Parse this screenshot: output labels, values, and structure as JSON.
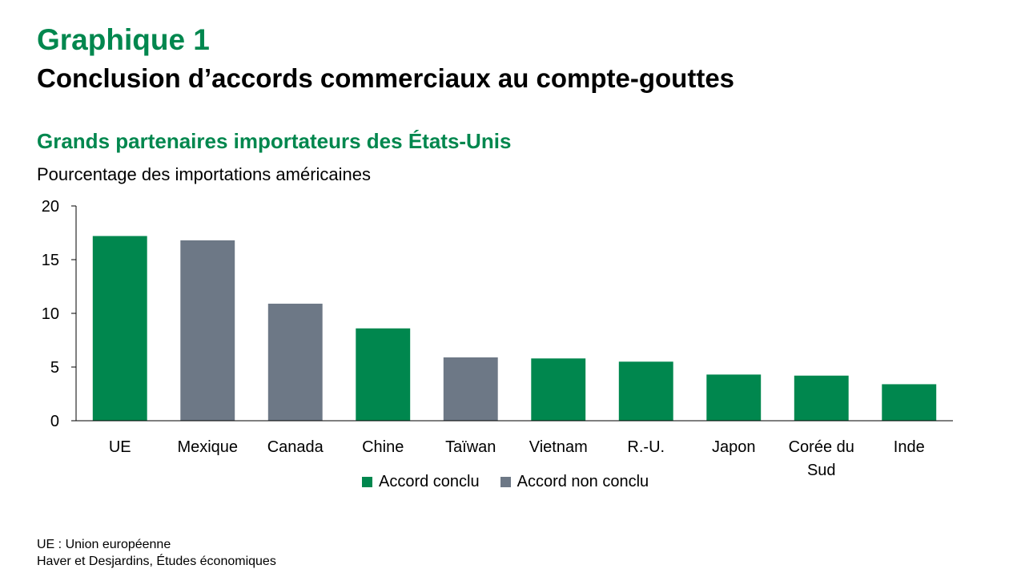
{
  "header": {
    "graph_number": "Graphique 1",
    "title": "Conclusion d’accords commerciaux au compte-gouttes"
  },
  "chart_data": {
    "type": "bar",
    "title": "Grands partenaires importateurs des États-Unis",
    "ylabel": "Pourcentage des importations américaines",
    "xlabel": "",
    "categories": [
      "UE",
      "Mexique",
      "Canada",
      "Chine",
      "Taïwan",
      "Vietnam",
      "R.-U.",
      "Japon",
      "Corée du Sud",
      "Inde"
    ],
    "category_lines": [
      [
        "UE"
      ],
      [
        "Mexique"
      ],
      [
        "Canada"
      ],
      [
        "Chine"
      ],
      [
        "Taïwan"
      ],
      [
        "Vietnam"
      ],
      [
        "R.-U."
      ],
      [
        "Japon"
      ],
      [
        "Corée du",
        "Sud"
      ],
      [
        "Inde"
      ]
    ],
    "values": [
      17.2,
      16.8,
      10.9,
      8.6,
      5.9,
      5.8,
      5.5,
      4.3,
      4.2,
      3.4
    ],
    "status": [
      "conclu",
      "non",
      "non",
      "conclu",
      "non",
      "conclu",
      "conclu",
      "conclu",
      "conclu",
      "conclu"
    ],
    "ylim": [
      0,
      20
    ],
    "yticks": [
      0,
      5,
      10,
      15,
      20
    ],
    "grid": false,
    "legend_position": "bottom",
    "legend": [
      {
        "key": "conclu",
        "label": "Accord conclu",
        "color": "#00874e"
      },
      {
        "key": "non",
        "label": "Accord non conclu",
        "color": "#6d7886"
      }
    ]
  },
  "footer": {
    "note": "UE : Union européenne",
    "source": "Haver et Desjardins, Études économiques"
  }
}
